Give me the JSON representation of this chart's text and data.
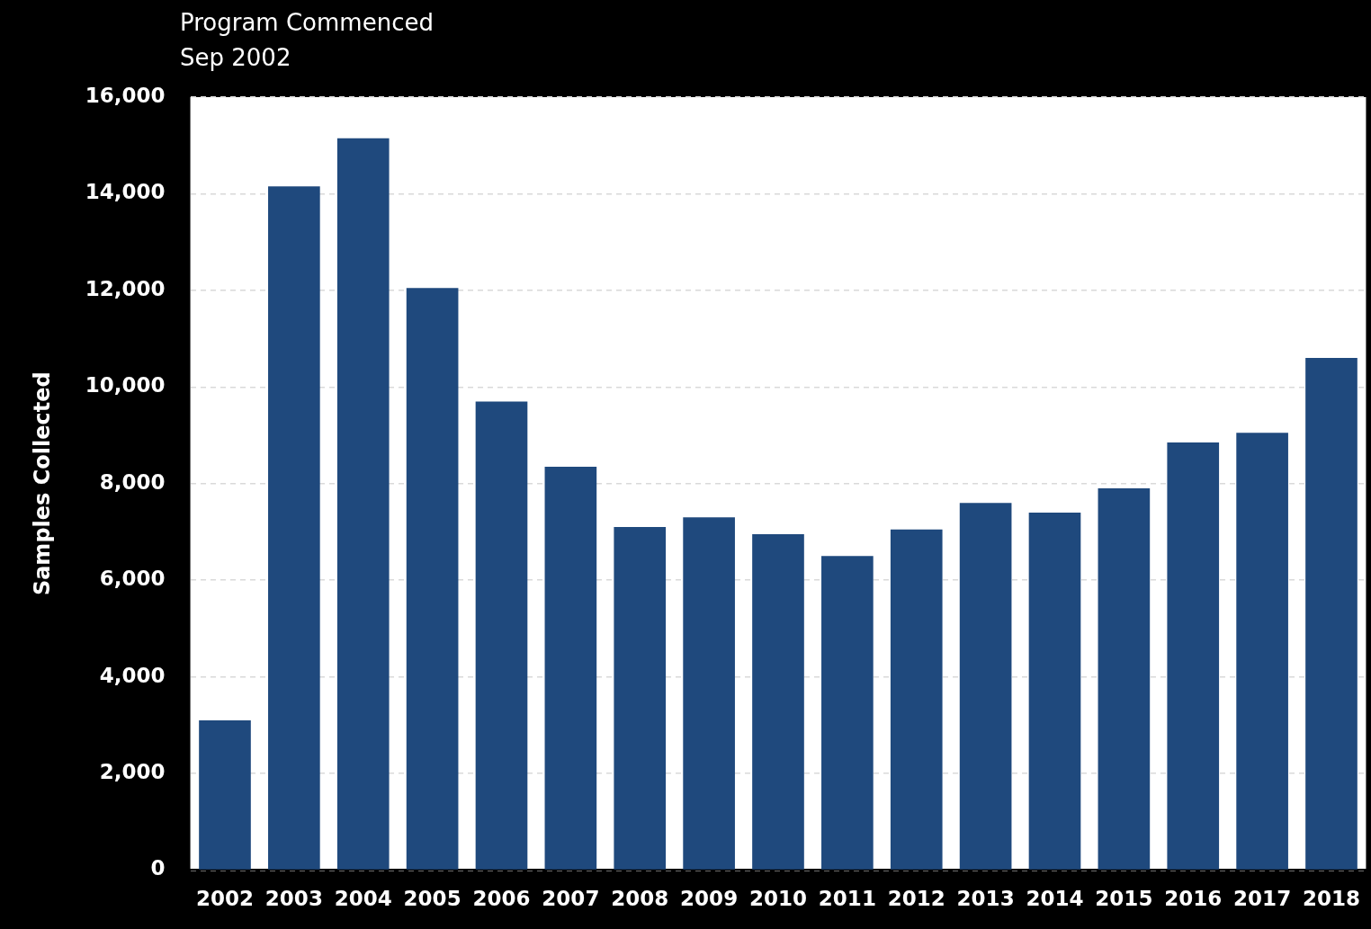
{
  "chart_data": {
    "type": "bar",
    "annotations": [
      "Program Commenced\nSep 2002"
    ],
    "ylabel": "Samples Collected",
    "categories": [
      "2002",
      "2003",
      "2004",
      "2005",
      "2006",
      "2007",
      "2008",
      "2009",
      "2010",
      "2011",
      "2012",
      "2013",
      "2014",
      "2015",
      "2016",
      "2017",
      "2018"
    ],
    "values": [
      3100,
      14150,
      15150,
      12050,
      9700,
      8350,
      7100,
      7300,
      6950,
      6500,
      7050,
      7600,
      7400,
      7900,
      8850,
      9050,
      10600
    ],
    "color": "#1f497d",
    "ylim": [
      0,
      16000
    ],
    "yticks": [
      0,
      {
        "value": 2000,
        "label": "2,000"
      },
      {
        "value": 4000,
        "label": "4,000"
      },
      {
        "value": 6000,
        "label": "6,000"
      },
      {
        "value": 8000,
        "label": "8,000"
      },
      {
        "value": 10000,
        "label": "10,000"
      },
      {
        "value": 12000,
        "label": "12,000"
      },
      {
        "value": 14000,
        "label": "14,000"
      },
      {
        "value": 16000,
        "label": "16,000"
      }
    ],
    "grid": "y",
    "legend": false
  }
}
